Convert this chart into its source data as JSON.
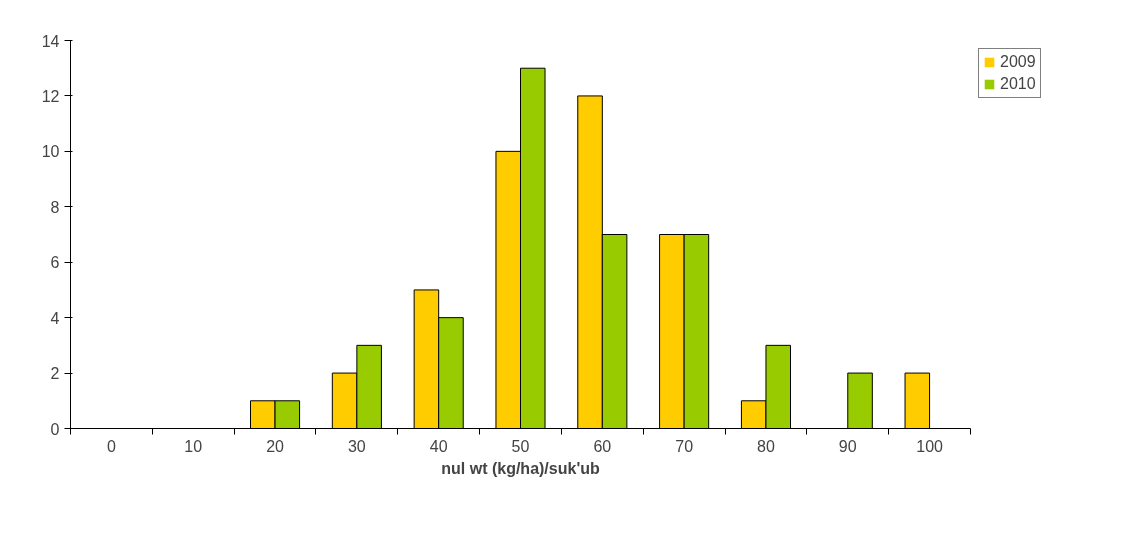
{
  "chart_data": {
    "type": "bar",
    "xlabel": "nul wt (kg/ha)/suk'ub",
    "categories": [
      "0",
      "10",
      "20",
      "30",
      "40",
      "50",
      "60",
      "70",
      "80",
      "90",
      "100"
    ],
    "series": [
      {
        "name": "2009",
        "color": "#ffcc00",
        "values": [
          0,
          0,
          1,
          2,
          5,
          10,
          12,
          7,
          1,
          0,
          2
        ]
      },
      {
        "name": "2010",
        "color": "#99cc00",
        "values": [
          0,
          0,
          1,
          3,
          4,
          13,
          7,
          7,
          3,
          2,
          0
        ]
      }
    ],
    "ylim": [
      0,
      14
    ],
    "yticks": [
      0,
      2,
      4,
      6,
      8,
      10,
      12,
      14
    ],
    "grid": false,
    "legend": "right"
  }
}
